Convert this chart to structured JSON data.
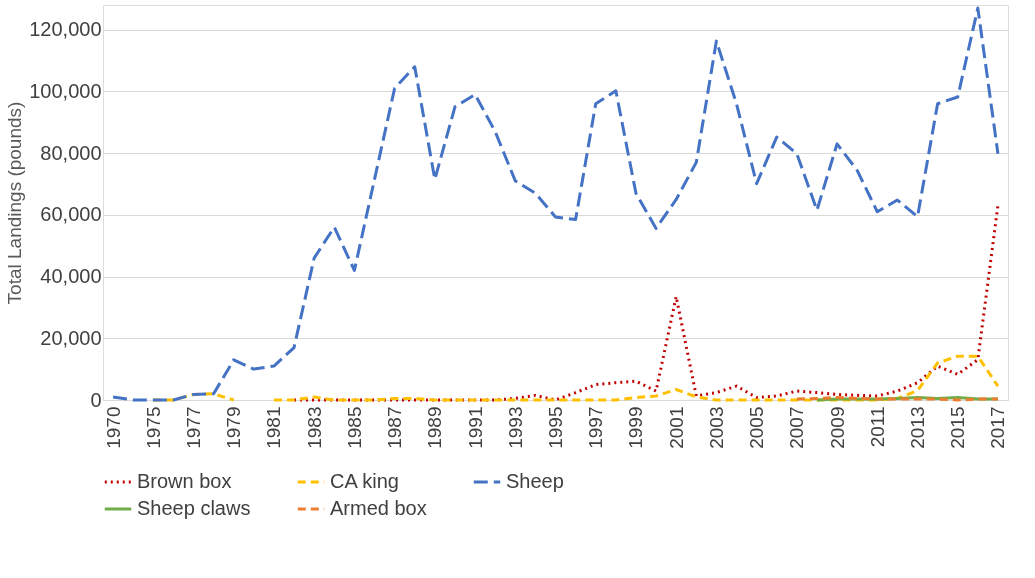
{
  "chart_data": {
    "type": "line",
    "ylabel": "Total Landings (pounds)",
    "categories": [
      "1970",
      null,
      "1975",
      null,
      "1977",
      null,
      "1979",
      null,
      "1981",
      null,
      "1983",
      null,
      "1985",
      null,
      "1987",
      null,
      "1989",
      null,
      "1991",
      null,
      "1993",
      null,
      "1995",
      null,
      "1997",
      null,
      "1999",
      null,
      "2001",
      null,
      "2003",
      null,
      "2005",
      null,
      "2007",
      null,
      "2009",
      null,
      "2011",
      null,
      "2013",
      null,
      "2015",
      null,
      "2017"
    ],
    "ylim": [
      0,
      128000
    ],
    "yticks": [
      {
        "value": 0,
        "label": "0"
      },
      {
        "value": 20000,
        "label": "20,000"
      },
      {
        "value": 40000,
        "label": "40,000"
      },
      {
        "value": 60000,
        "label": "60,000"
      },
      {
        "value": 80000,
        "label": "80,000"
      },
      {
        "value": 100000,
        "label": "100,000"
      },
      {
        "value": 120000,
        "label": "120,000"
      }
    ],
    "grid": "y",
    "legend": "bottom",
    "series": [
      {
        "name": "Brown box",
        "color": "#c00000",
        "line_style": "dotted",
        "values": [
          null,
          null,
          null,
          null,
          null,
          null,
          null,
          null,
          null,
          0,
          0,
          0,
          0,
          0,
          0,
          0,
          0,
          0,
          0,
          0,
          500,
          1500,
          0,
          2400,
          5000,
          5600,
          6100,
          2900,
          33500,
          1300,
          2400,
          4500,
          800,
          1300,
          2900,
          2400,
          1800,
          1500,
          1300,
          2900,
          5600,
          11000,
          8300,
          13100,
          63100
        ]
      },
      {
        "name": "CA king",
        "color": "#ffc000",
        "line_style": "dashed",
        "values": [
          null,
          null,
          0,
          0,
          1800,
          2000,
          0,
          null,
          0,
          0,
          1000,
          0,
          0,
          0,
          500,
          500,
          0,
          0,
          0,
          0,
          0,
          0,
          0,
          0,
          0,
          0,
          800,
          1300,
          3400,
          1000,
          0,
          0,
          0,
          0,
          0,
          0,
          0,
          0,
          0,
          500,
          3000,
          12000,
          14200,
          14200,
          4500
        ]
      },
      {
        "name": "Sheep",
        "color": "#4472c4",
        "line_style": "longdash",
        "values": [
          1000,
          0,
          0,
          0,
          1800,
          2000,
          13000,
          10000,
          11000,
          17000,
          46000,
          56000,
          42000,
          71500,
          101000,
          108000,
          71500,
          95000,
          99000,
          87000,
          71000,
          67000,
          59300,
          58500,
          96000,
          100200,
          67000,
          55600,
          65000,
          77000,
          116300,
          96000,
          70100,
          85200,
          79800,
          61500,
          83000,
          74400,
          61000,
          64800,
          59400,
          96000,
          98200,
          127000,
          79800
        ]
      },
      {
        "name": "Sheep claws",
        "color": "#70ad47",
        "line_style": "solid",
        "values": [
          null,
          null,
          null,
          null,
          null,
          null,
          null,
          null,
          null,
          null,
          null,
          null,
          null,
          null,
          null,
          null,
          null,
          null,
          null,
          null,
          null,
          null,
          null,
          null,
          null,
          null,
          null,
          null,
          null,
          null,
          null,
          null,
          null,
          null,
          null,
          0,
          300,
          300,
          300,
          500,
          800,
          500,
          800,
          300,
          300
        ]
      },
      {
        "name": "Armed box",
        "color": "#ed7d31",
        "line_style": "dashed",
        "values": [
          null,
          null,
          null,
          null,
          null,
          null,
          null,
          null,
          null,
          null,
          null,
          null,
          null,
          null,
          null,
          null,
          null,
          null,
          null,
          null,
          null,
          null,
          null,
          null,
          null,
          null,
          null,
          null,
          null,
          null,
          null,
          null,
          null,
          null,
          300,
          500,
          800,
          500,
          300,
          300,
          300,
          300,
          0,
          300,
          300
        ]
      }
    ]
  }
}
